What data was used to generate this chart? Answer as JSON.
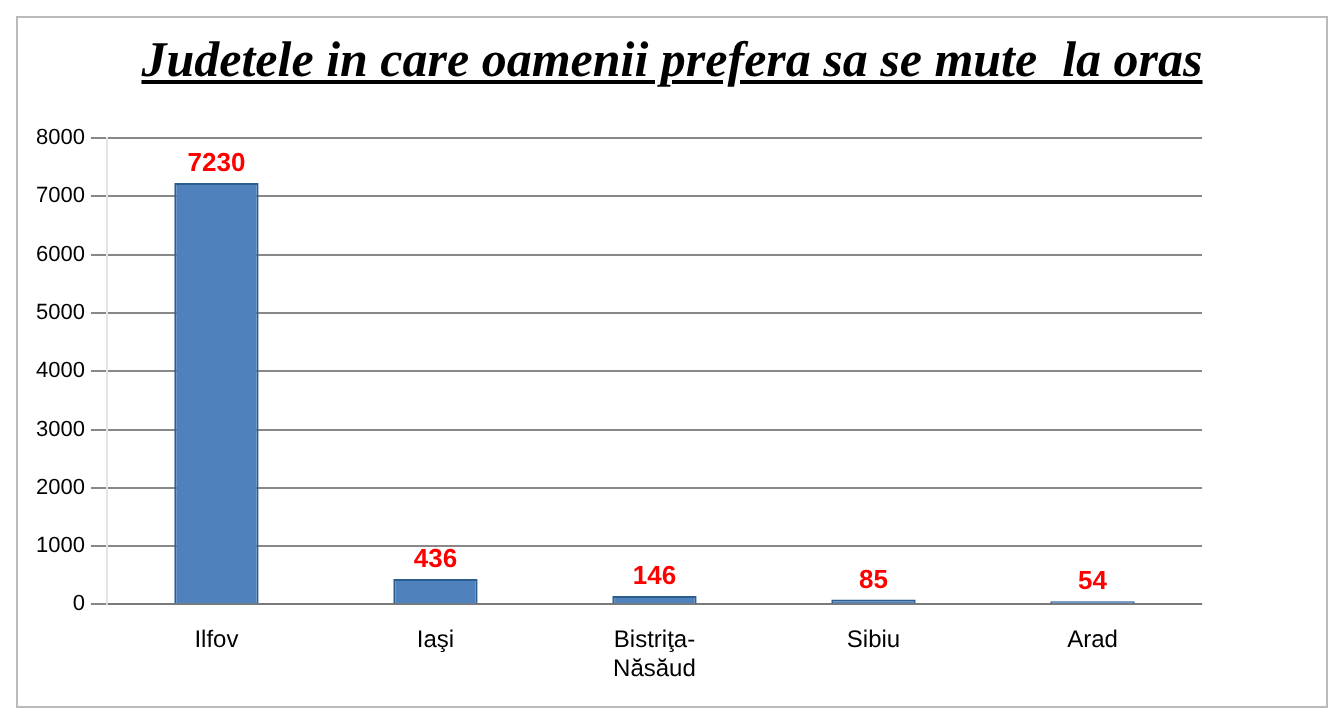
{
  "chart_data": {
    "type": "bar",
    "title": "Judetele in care oamenii prefera sa se mute  la oras",
    "categories": [
      "Ilfov",
      "Iaşi",
      "Bistriţa-Năsăud",
      "Sibiu",
      "Arad"
    ],
    "values": [
      7230,
      436,
      146,
      85,
      54
    ],
    "color": "#4f81bd",
    "ylim": [
      0,
      8000
    ],
    "yticks": [
      0,
      1000,
      2000,
      3000,
      4000,
      5000,
      6000,
      7000,
      8000
    ],
    "grid": "y",
    "data_labels": true
  }
}
